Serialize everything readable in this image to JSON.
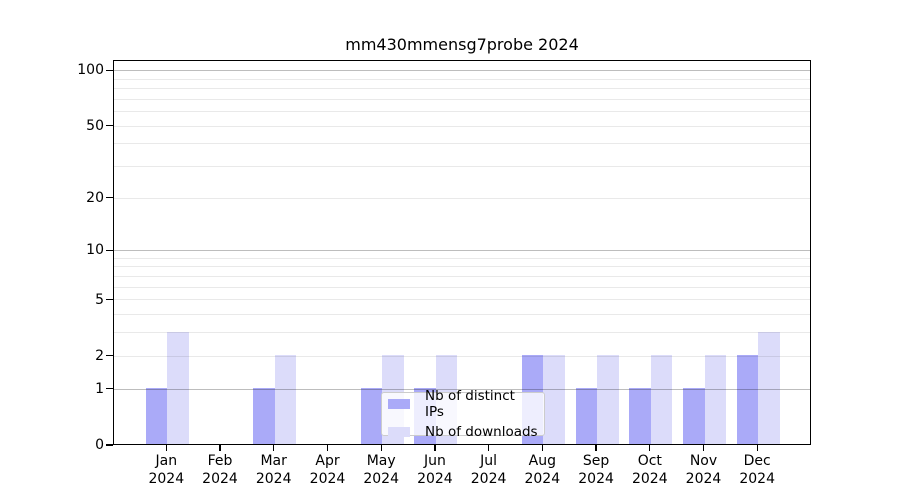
{
  "chart_data": {
    "type": "bar",
    "title": "mm430mmensg7probe 2024",
    "categories": [
      "Jan 2024",
      "Feb 2024",
      "Mar 2024",
      "Apr 2024",
      "May 2024",
      "Jun 2024",
      "Jul 2024",
      "Aug 2024",
      "Sep 2024",
      "Oct 2024",
      "Nov 2024",
      "Dec 2024"
    ],
    "series": [
      {
        "name": "Nb of distinct IPs",
        "color": "#aaaaf8",
        "values": [
          1,
          0,
          1,
          0,
          1,
          1,
          0,
          2,
          1,
          1,
          1,
          2
        ]
      },
      {
        "name": "Nb of downloads",
        "color": "#dcdcfa",
        "values": [
          3,
          0,
          2,
          0,
          2,
          2,
          0,
          2,
          2,
          2,
          2,
          3
        ]
      }
    ],
    "yscale": "log1p",
    "ylim": [
      0,
      113.7
    ],
    "ytick_labels": [
      "0",
      "1",
      "2",
      "5",
      "10",
      "20",
      "50",
      "100"
    ],
    "gridlines": [
      1,
      2,
      3,
      4,
      5,
      6,
      7,
      8,
      9,
      10,
      20,
      30,
      40,
      50,
      60,
      70,
      80,
      90,
      100
    ],
    "emphasized_gridlines": [
      1,
      10,
      100
    ],
    "grid": true,
    "legend_position": "inside-bottom-center",
    "xlabel": "",
    "ylabel": ""
  }
}
